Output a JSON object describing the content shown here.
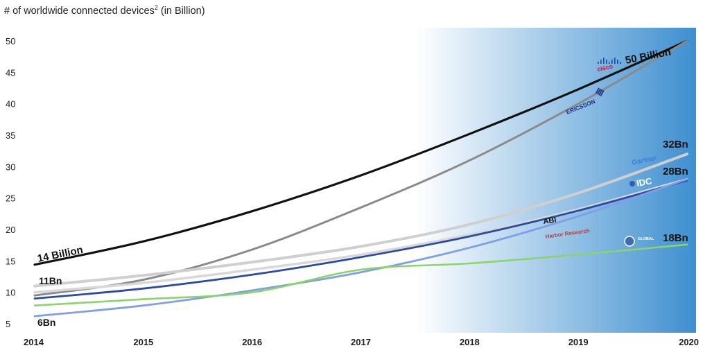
{
  "chart_data": {
    "type": "line",
    "title": "# of worldwide connected devices",
    "title_sup": "2",
    "title_suffix": " (in Billion)",
    "x": [
      2014,
      2015,
      2016,
      2017,
      2018,
      2019,
      2020
    ],
    "xlim": [
      2014,
      2020
    ],
    "ylim": [
      5,
      50
    ],
    "yticks": [
      5,
      10,
      15,
      20,
      25,
      30,
      35,
      40,
      45,
      50
    ],
    "grid": false,
    "series": [
      {
        "name": "Cisco",
        "color": "#111111",
        "values": [
          14.4,
          18.1,
          22.9,
          28.6,
          35.2,
          42.3,
          50.0
        ]
      },
      {
        "name": "Ericsson",
        "color": "#8a8a8a",
        "values": [
          9.5,
          12.0,
          16.8,
          23.5,
          31.0,
          40.0,
          50.0
        ]
      },
      {
        "name": "Gartner",
        "color": "#cfcfcf",
        "values": [
          11.0,
          12.7,
          14.8,
          17.3,
          20.8,
          25.8,
          32.0
        ]
      },
      {
        "name": "IDC",
        "color": "#d8d8d8",
        "values": [
          10.0,
          11.5,
          13.6,
          16.0,
          19.2,
          23.2,
          28.0
        ]
      },
      {
        "name": "ABI",
        "color": "#2a4aa3",
        "values": [
          9.0,
          10.6,
          12.8,
          15.6,
          18.9,
          23.0,
          27.8
        ]
      },
      {
        "name": "Harbor Research",
        "color": "#7f9fe8",
        "values": [
          6.2,
          7.9,
          10.3,
          13.2,
          17.1,
          22.1,
          28.0
        ]
      },
      {
        "name": "Global Market Insights",
        "color": "#8bd46a",
        "values": [
          7.9,
          8.9,
          10.0,
          13.6,
          14.6,
          16.0,
          17.6
        ]
      }
    ],
    "annotations": [
      {
        "text": "14 Billion",
        "series": "Cisco"
      },
      {
        "text": "11Bn",
        "series": "Gartner"
      },
      {
        "text": "6Bn",
        "series": "Harbor Research"
      },
      {
        "text": "50 Billion",
        "series": "Cisco"
      },
      {
        "text": "32Bn",
        "series": "Gartner"
      },
      {
        "text": "28Bn",
        "series": "IDC"
      },
      {
        "text": "18Bn",
        "series": "Global Market Insights"
      }
    ],
    "vendor_logos": {
      "cisco": "cisco",
      "ericsson": "ERICSSON",
      "gartner": "Gartner",
      "idc": "IDC",
      "abi": "ABI",
      "harbor": "Harbor Research",
      "global": "GLOBAL"
    },
    "colors": {
      "bg_gradient_end": "#3e8fd0",
      "cisco_red": "#c8102e",
      "ericsson_blue": "#1f2f8c",
      "gartner_blue": "#3d7ed8",
      "harbor_red": "#b04040"
    }
  }
}
